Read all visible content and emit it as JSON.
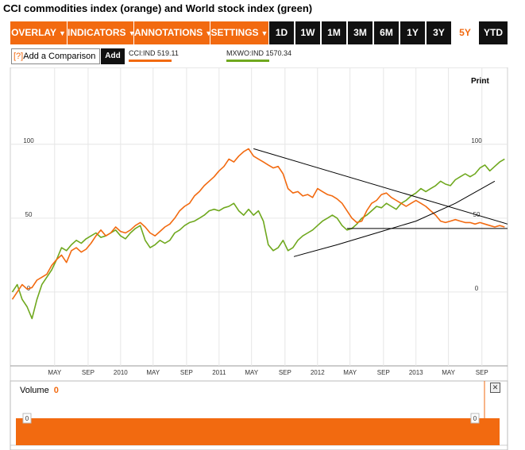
{
  "title": "CCI commodities index (orange) and World stock index (green)",
  "toolbar": {
    "menus": [
      {
        "label": "OVERLAY"
      },
      {
        "label": "INDICATORS"
      },
      {
        "label": "ANNOTATIONS"
      },
      {
        "label": "SETTINGS"
      }
    ],
    "ranges": [
      "1D",
      "1W",
      "1M",
      "3M",
      "6M",
      "1Y",
      "3Y",
      "5Y",
      "YTD"
    ],
    "active_range": "5Y",
    "caret": "▼"
  },
  "compare": {
    "help": "[?]",
    "label": "Add a Comparison",
    "add_label": "Add"
  },
  "legend": [
    {
      "name": "CCI:IND",
      "value": "519.11",
      "color": "#f26a10"
    },
    {
      "name": "MXWO:IND",
      "value": "1570.34",
      "color": "#6fa81e"
    }
  ],
  "print_label": "Print",
  "volume": {
    "label": "Volume",
    "value": "0"
  },
  "close_label": "✕",
  "chart_data": {
    "type": "line",
    "title": "CCI commodities index (orange) and World stock index (green)",
    "normalized": true,
    "y_ticks_left": [
      "100",
      "50",
      "0"
    ],
    "y_ticks_right": [
      "100",
      "50",
      "0"
    ],
    "y_tick_values": [
      100,
      50,
      0
    ],
    "ylim": [
      -50,
      152
    ],
    "x_ticks": [
      "MAY",
      "SEP",
      "2010",
      "MAY",
      "SEP",
      "2011",
      "MAY",
      "SEP",
      "2012",
      "MAY",
      "SEP",
      "2013",
      "MAY",
      "SEP"
    ],
    "x_tick_values": [
      2009.33,
      2009.67,
      2010.0,
      2010.33,
      2010.67,
      2011.0,
      2011.33,
      2011.67,
      2012.0,
      2012.33,
      2012.67,
      2013.0,
      2013.33,
      2013.67
    ],
    "xlim": [
      2008.88,
      2013.93
    ],
    "series": [
      {
        "name": "CCI:IND",
        "color": "#f26a10",
        "x": [
          2008.9,
          2008.95,
          2009.0,
          2009.05,
          2009.1,
          2009.15,
          2009.2,
          2009.25,
          2009.3,
          2009.35,
          2009.4,
          2009.45,
          2009.5,
          2009.55,
          2009.6,
          2009.65,
          2009.7,
          2009.75,
          2009.8,
          2009.85,
          2009.9,
          2009.95,
          2010.0,
          2010.05,
          2010.1,
          2010.15,
          2010.2,
          2010.25,
          2010.3,
          2010.35,
          2010.4,
          2010.45,
          2010.5,
          2010.55,
          2010.6,
          2010.65,
          2010.7,
          2010.75,
          2010.8,
          2010.85,
          2010.9,
          2010.95,
          2011.0,
          2011.05,
          2011.1,
          2011.15,
          2011.2,
          2011.25,
          2011.3,
          2011.35,
          2011.4,
          2011.45,
          2011.5,
          2011.55,
          2011.6,
          2011.65,
          2011.7,
          2011.75,
          2011.8,
          2011.85,
          2011.9,
          2011.95,
          2012.0,
          2012.05,
          2012.1,
          2012.15,
          2012.2,
          2012.25,
          2012.3,
          2012.35,
          2012.4,
          2012.45,
          2012.5,
          2012.55,
          2012.6,
          2012.65,
          2012.7,
          2012.75,
          2012.8,
          2012.85,
          2012.9,
          2012.95,
          2013.0,
          2013.05,
          2013.1,
          2013.15,
          2013.2,
          2013.25,
          2013.3,
          2013.35,
          2013.4,
          2013.45,
          2013.5,
          2013.55,
          2013.6,
          2013.65,
          2013.7,
          2013.75,
          2013.8,
          2013.85,
          2013.9
        ],
        "values": [
          -5,
          0,
          5,
          2,
          3,
          8,
          10,
          12,
          18,
          22,
          25,
          20,
          28,
          30,
          27,
          29,
          33,
          38,
          42,
          38,
          40,
          44,
          41,
          40,
          42,
          45,
          47,
          44,
          40,
          38,
          41,
          44,
          46,
          50,
          55,
          58,
          60,
          65,
          68,
          72,
          75,
          78,
          82,
          85,
          90,
          88,
          92,
          95,
          97,
          92,
          90,
          88,
          86,
          84,
          85,
          80,
          70,
          67,
          68,
          65,
          66,
          64,
          70,
          68,
          66,
          65,
          63,
          60,
          55,
          50,
          47,
          48,
          55,
          60,
          62,
          66,
          67,
          64,
          62,
          60,
          58,
          60,
          62,
          60,
          58,
          55,
          52,
          48,
          47,
          48,
          49,
          48,
          47,
          47,
          46,
          47,
          46,
          45,
          44,
          45,
          44
        ]
      },
      {
        "name": "MXWO:IND",
        "color": "#6fa81e",
        "x": [
          2008.9,
          2008.95,
          2009.0,
          2009.05,
          2009.1,
          2009.15,
          2009.2,
          2009.25,
          2009.3,
          2009.35,
          2009.4,
          2009.45,
          2009.5,
          2009.55,
          2009.6,
          2009.65,
          2009.7,
          2009.75,
          2009.8,
          2009.85,
          2009.9,
          2009.95,
          2010.0,
          2010.05,
          2010.1,
          2010.15,
          2010.2,
          2010.25,
          2010.3,
          2010.35,
          2010.4,
          2010.45,
          2010.5,
          2010.55,
          2010.6,
          2010.65,
          2010.7,
          2010.75,
          2010.8,
          2010.85,
          2010.9,
          2010.95,
          2011.0,
          2011.05,
          2011.1,
          2011.15,
          2011.2,
          2011.25,
          2011.3,
          2011.35,
          2011.4,
          2011.45,
          2011.5,
          2011.55,
          2011.6,
          2011.65,
          2011.7,
          2011.75,
          2011.8,
          2011.85,
          2011.9,
          2011.95,
          2012.0,
          2012.05,
          2012.1,
          2012.15,
          2012.2,
          2012.25,
          2012.3,
          2012.35,
          2012.4,
          2012.45,
          2012.5,
          2012.55,
          2012.6,
          2012.65,
          2012.7,
          2012.75,
          2012.8,
          2012.85,
          2012.9,
          2012.95,
          2013.0,
          2013.05,
          2013.1,
          2013.15,
          2013.2,
          2013.25,
          2013.3,
          2013.35,
          2013.4,
          2013.45,
          2013.5,
          2013.55,
          2013.6,
          2013.65,
          2013.7,
          2013.75,
          2013.8,
          2013.85,
          2013.9
        ],
        "values": [
          0,
          5,
          -5,
          -10,
          -18,
          -5,
          5,
          10,
          15,
          22,
          30,
          28,
          32,
          35,
          33,
          36,
          38,
          40,
          37,
          38,
          40,
          42,
          38,
          36,
          40,
          43,
          45,
          35,
          30,
          32,
          35,
          33,
          35,
          40,
          42,
          45,
          47,
          48,
          50,
          52,
          55,
          56,
          55,
          57,
          58,
          60,
          55,
          52,
          56,
          52,
          55,
          48,
          32,
          28,
          30,
          35,
          28,
          30,
          35,
          38,
          40,
          42,
          45,
          48,
          50,
          52,
          50,
          45,
          42,
          43,
          46,
          50,
          52,
          55,
          58,
          57,
          60,
          58,
          56,
          60,
          62,
          65,
          67,
          70,
          68,
          70,
          72,
          75,
          73,
          72,
          76,
          78,
          80,
          78,
          80,
          84,
          86,
          82,
          85,
          88,
          90
        ]
      }
    ],
    "trendlines": [
      {
        "name": "upper-descending-trendline",
        "points": [
          [
            2011.35,
            97
          ],
          [
            2013.93,
            46
          ]
        ]
      },
      {
        "name": "lower-ascending-trendline",
        "points": [
          [
            2011.76,
            24
          ],
          [
            2012.2,
            32
          ],
          [
            2012.6,
            40
          ],
          [
            2013.0,
            48
          ],
          [
            2013.4,
            60
          ],
          [
            2013.8,
            75
          ]
        ]
      },
      {
        "name": "horizontal-support-line",
        "points": [
          [
            2012.3,
            43
          ],
          [
            2013.93,
            43
          ]
        ]
      }
    ],
    "volume": {
      "label": "Volume",
      "value": 0,
      "y_tick": "0"
    }
  }
}
